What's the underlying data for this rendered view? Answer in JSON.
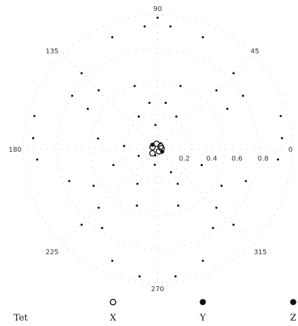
{
  "chart_data": {
    "type": "scatter",
    "projection": "polar",
    "angle_labels": [
      "0",
      "45",
      "90",
      "135",
      "180",
      "225",
      "270",
      "315"
    ],
    "radial_tick_labels": [
      "0.2",
      "0.4",
      "0.6",
      "0.8"
    ],
    "radial_range": [
      0,
      1
    ],
    "grid": "dotted",
    "legend": {
      "title": "Tet",
      "placement": "bottom",
      "items": [
        {
          "label": "X",
          "marker": "open-circle"
        },
        {
          "label": "Y",
          "marker": "filled-circle"
        },
        {
          "label": "Z",
          "marker": "filled-circle"
        }
      ]
    },
    "series": [
      {
        "name": "X",
        "points": [
          {
            "r": 0.04,
            "theta": 100
          },
          {
            "r": 0.03,
            "theta": 40
          },
          {
            "r": 0.04,
            "theta": 160
          },
          {
            "r": 0.02,
            "theta": 300
          },
          {
            "r": 0.05,
            "theta": 220
          },
          {
            "r": 0.03,
            "theta": 10
          }
        ]
      },
      {
        "name": "Y",
        "points": [
          {
            "r": 0.98,
            "theta": 90
          },
          {
            "r": 0.92,
            "theta": 96
          },
          {
            "r": 0.92,
            "theta": 84
          },
          {
            "r": 0.9,
            "theta": 112
          },
          {
            "r": 0.9,
            "theta": 68
          },
          {
            "r": 0.8,
            "theta": 135
          },
          {
            "r": 0.8,
            "theta": 45
          },
          {
            "r": 0.62,
            "theta": 135
          },
          {
            "r": 0.62,
            "theta": 45
          },
          {
            "r": 0.75,
            "theta": 148
          },
          {
            "r": 0.75,
            "theta": 32
          },
          {
            "r": 0.6,
            "theta": 150
          },
          {
            "r": 0.6,
            "theta": 30
          },
          {
            "r": 0.5,
            "theta": 110
          },
          {
            "r": 0.5,
            "theta": 70
          },
          {
            "r": 0.35,
            "theta": 100
          },
          {
            "r": 0.35,
            "theta": 80
          },
          {
            "r": 0.28,
            "theta": 120
          },
          {
            "r": 0.28,
            "theta": 60
          },
          {
            "r": 0.95,
            "theta": 165
          },
          {
            "r": 0.95,
            "theta": 15
          },
          {
            "r": 0.93,
            "theta": 175
          },
          {
            "r": 0.93,
            "theta": 5
          },
          {
            "r": 0.9,
            "theta": 185
          },
          {
            "r": 0.9,
            "theta": 355
          },
          {
            "r": 0.45,
            "theta": 170
          },
          {
            "r": 0.25,
            "theta": 175
          },
          {
            "r": 0.15,
            "theta": 200
          },
          {
            "r": 0.12,
            "theta": 260
          },
          {
            "r": 0.35,
            "theta": 200
          },
          {
            "r": 0.35,
            "theta": 340
          },
          {
            "r": 0.55,
            "theta": 210
          },
          {
            "r": 0.55,
            "theta": 330
          },
          {
            "r": 0.7,
            "theta": 200
          },
          {
            "r": 0.7,
            "theta": 340
          },
          {
            "r": 0.8,
            "theta": 225
          },
          {
            "r": 0.8,
            "theta": 315
          },
          {
            "r": 0.62,
            "theta": 225
          },
          {
            "r": 0.62,
            "theta": 315
          },
          {
            "r": 0.72,
            "theta": 235
          },
          {
            "r": 0.72,
            "theta": 305
          },
          {
            "r": 0.9,
            "theta": 248
          },
          {
            "r": 0.9,
            "theta": 292
          },
          {
            "r": 0.96,
            "theta": 262
          },
          {
            "r": 0.96,
            "theta": 278
          },
          {
            "r": 0.45,
            "theta": 250
          },
          {
            "r": 0.45,
            "theta": 290
          },
          {
            "r": 0.3,
            "theta": 240
          },
          {
            "r": 0.3,
            "theta": 300
          },
          {
            "r": 0.05,
            "theta": 60
          },
          {
            "r": 0.05,
            "theta": 250
          },
          {
            "r": 0.18,
            "theta": 95
          },
          {
            "r": 0.2,
            "theta": 300
          }
        ]
      },
      {
        "name": "Z",
        "points": [
          {
            "r": 0.05,
            "theta": 140
          },
          {
            "r": 0.04,
            "theta": 330
          }
        ]
      }
    ]
  }
}
